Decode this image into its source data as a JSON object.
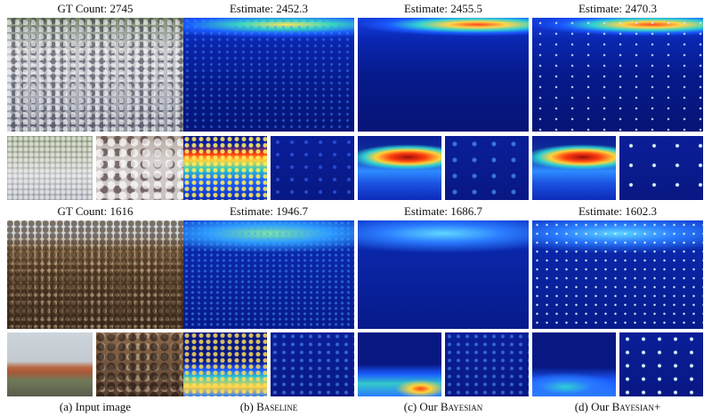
{
  "rows": [
    {
      "gt_label": "GT Count: 2745",
      "estimates": [
        "Estimate: 2452.3",
        "Estimate: 2455.5",
        "Estimate: 2470.3"
      ]
    },
    {
      "gt_label": "GT Count: 1616",
      "estimates": [
        "Estimate: 1946.7",
        "Estimate: 1686.7",
        "Estimate: 1602.3"
      ]
    }
  ],
  "columns": [
    {
      "prefix": "(a) Input image",
      "sc": ""
    },
    {
      "prefix": "(b) ",
      "sc": "Baseline"
    },
    {
      "prefix": "(c) Our ",
      "sc": "Bayesian"
    },
    {
      "prefix": "(d) Our ",
      "sc": "Bayesian+"
    }
  ]
}
